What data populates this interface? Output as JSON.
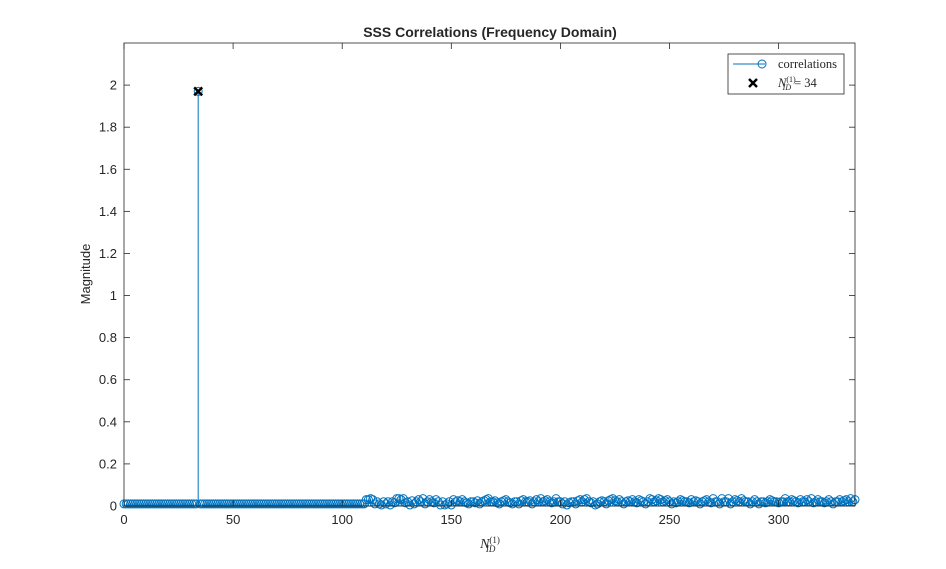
{
  "chart_data": {
    "type": "stem",
    "title": "SSS Correlations (Frequency Domain)",
    "xlabel": {
      "base": "N",
      "subscript": "ID",
      "superscript": "(1)"
    },
    "ylabel": "Magnitude",
    "xlim": [
      0,
      335
    ],
    "ylim": [
      0,
      2.2
    ],
    "xticks": [
      0,
      50,
      100,
      150,
      200,
      250,
      300
    ],
    "yticks": [
      0,
      0.2,
      0.4,
      0.6,
      0.8,
      1,
      1.2,
      1.4,
      1.6,
      1.8,
      2
    ],
    "grid": false,
    "legend_position": "top-right",
    "colors": {
      "series": "#0072BD",
      "marker": "#000000",
      "axis": "#262626"
    },
    "series": [
      {
        "name": "correlations",
        "style": "stem",
        "x_start": 0,
        "values": [
          0.01,
          0.01,
          0.01,
          0.01,
          0.01,
          0.01,
          0.01,
          0.01,
          0.01,
          0.01,
          0.01,
          0.01,
          0.01,
          0.01,
          0.01,
          0.01,
          0.01,
          0.01,
          0.01,
          0.01,
          0.01,
          0.01,
          0.01,
          0.01,
          0.01,
          0.01,
          0.01,
          0.01,
          0.01,
          0.01,
          0.01,
          0.01,
          0.01,
          0.01,
          1.97,
          0.01,
          0.01,
          0.01,
          0.01,
          0.01,
          0.01,
          0.01,
          0.01,
          0.01,
          0.01,
          0.01,
          0.01,
          0.01,
          0.01,
          0.01,
          0.01,
          0.01,
          0.01,
          0.01,
          0.01,
          0.01,
          0.01,
          0.01,
          0.01,
          0.01,
          0.01,
          0.01,
          0.01,
          0.01,
          0.01,
          0.01,
          0.01,
          0.01,
          0.01,
          0.01,
          0.01,
          0.01,
          0.01,
          0.01,
          0.01,
          0.01,
          0.01,
          0.01,
          0.01,
          0.01,
          0.01,
          0.01,
          0.01,
          0.01,
          0.01,
          0.01,
          0.01,
          0.01,
          0.01,
          0.01,
          0.01,
          0.01,
          0.01,
          0.01,
          0.01,
          0.01,
          0.01,
          0.01,
          0.01,
          0.01,
          0.01,
          0.01,
          0.01,
          0.01,
          0.01,
          0.01,
          0.01,
          0.01,
          0.01,
          0.01,
          0.01,
          0.03,
          0.03,
          0.035,
          0.03,
          0.01,
          0.02,
          0.01,
          0.005,
          0.02,
          0.01,
          0.02,
          0.005,
          0.02,
          0.015,
          0.035,
          0.035,
          0.03,
          0.035,
          0.015,
          0.02,
          0.005,
          0.025,
          0.01,
          0.02,
          0.03,
          0.02,
          0.035,
          0.01,
          0.02,
          0.03,
          0.02,
          0.015,
          0.03,
          0.02,
          0.005,
          0.02,
          0.005,
          0.01,
          0.02,
          0.005,
          0.03,
          0.02,
          0.025,
          0.02,
          0.03,
          0.02,
          0.015,
          0.01,
          0.02,
          0.02,
          0.015,
          0.025,
          0.01,
          0.02,
          0.025,
          0.03,
          0.035,
          0.02,
          0.02,
          0.025,
          0.015,
          0.01,
          0.02,
          0.025,
          0.03,
          0.02,
          0.015,
          0.01,
          0.02,
          0.02,
          0.01,
          0.025,
          0.03,
          0.02,
          0.02,
          0.025,
          0.01,
          0.02,
          0.03,
          0.02,
          0.035,
          0.02,
          0.025,
          0.03,
          0.02,
          0.015,
          0.02,
          0.035,
          0.02,
          0.02,
          0.01,
          0.02,
          0.005,
          0.015,
          0.02,
          0.02,
          0.01,
          0.025,
          0.03,
          0.02,
          0.03,
          0.035,
          0.02,
          0.015,
          0.02,
          0.005,
          0.01,
          0.02,
          0.025,
          0.02,
          0.01,
          0.025,
          0.03,
          0.035,
          0.025,
          0.02,
          0.03,
          0.02,
          0.01,
          0.02,
          0.025,
          0.02,
          0.03,
          0.02,
          0.015,
          0.03,
          0.025,
          0.02,
          0.01,
          0.02,
          0.035,
          0.03,
          0.02,
          0.025,
          0.035,
          0.03,
          0.02,
          0.025,
          0.03,
          0.02,
          0.01,
          0.02,
          0.015,
          0.02,
          0.03,
          0.025,
          0.02,
          0.02,
          0.015,
          0.03,
          0.02,
          0.025,
          0.02,
          0.01,
          0.02,
          0.025,
          0.03,
          0.02,
          0.015,
          0.035,
          0.02,
          0.02,
          0.01,
          0.035,
          0.02,
          0.02,
          0.035,
          0.01,
          0.02,
          0.03,
          0.025,
          0.02,
          0.035,
          0.025,
          0.02,
          0.02,
          0.01,
          0.02,
          0.03,
          0.02,
          0.01,
          0.02,
          0.02,
          0.015,
          0.02,
          0.03,
          0.025,
          0.02,
          0.02,
          0.015,
          0.02,
          0.02,
          0.035,
          0.02,
          0.02,
          0.03,
          0.025,
          0.02,
          0.015,
          0.03,
          0.02,
          0.02,
          0.03,
          0.02,
          0.035,
          0.015,
          0.02,
          0.03,
          0.02,
          0.02,
          0.015,
          0.02,
          0.03,
          0.02,
          0.01,
          0.02,
          0.02,
          0.03,
          0.02,
          0.025,
          0.03,
          0.02,
          0.035,
          0.02,
          0.03
        ]
      },
      {
        "name_math": {
          "base": "N",
          "subscript": "ID",
          "superscript": "(1)",
          "relation": "=",
          "value": "34"
        },
        "style": "marker-x",
        "x": [
          34
        ],
        "y": [
          1.97
        ]
      }
    ]
  }
}
